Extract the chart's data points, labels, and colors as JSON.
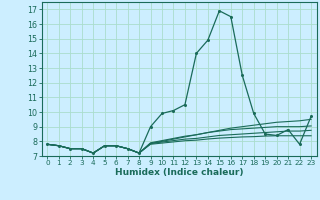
{
  "title": "",
  "xlabel": "Humidex (Indice chaleur)",
  "bg_color": "#cceeff",
  "grid_color": "#aaddcc",
  "line_color": "#1a6b5a",
  "xlim": [
    -0.5,
    23.5
  ],
  "ylim": [
    7.0,
    17.5
  ],
  "yticks": [
    7,
    8,
    9,
    10,
    11,
    12,
    13,
    14,
    15,
    16,
    17
  ],
  "xticks": [
    0,
    1,
    2,
    3,
    4,
    5,
    6,
    7,
    8,
    9,
    10,
    11,
    12,
    13,
    14,
    15,
    16,
    17,
    18,
    19,
    20,
    21,
    22,
    23
  ],
  "series": [
    [
      7.8,
      7.7,
      7.5,
      7.5,
      7.2,
      7.7,
      7.7,
      7.5,
      7.2,
      9.0,
      9.9,
      10.1,
      10.5,
      14.0,
      14.9,
      16.9,
      16.5,
      12.5,
      9.9,
      8.5,
      8.4,
      8.8,
      7.8,
      9.7
    ],
    [
      7.8,
      7.7,
      7.5,
      7.5,
      7.2,
      7.7,
      7.7,
      7.5,
      7.2,
      7.85,
      8.0,
      8.15,
      8.3,
      8.45,
      8.6,
      8.75,
      8.9,
      9.0,
      9.1,
      9.2,
      9.3,
      9.35,
      9.4,
      9.5
    ],
    [
      7.8,
      7.7,
      7.5,
      7.5,
      7.2,
      7.7,
      7.7,
      7.5,
      7.2,
      7.9,
      8.05,
      8.2,
      8.35,
      8.45,
      8.6,
      8.7,
      8.8,
      8.85,
      8.9,
      8.95,
      9.0,
      9.0,
      9.0,
      9.05
    ],
    [
      7.8,
      7.7,
      7.5,
      7.5,
      7.2,
      7.7,
      7.7,
      7.5,
      7.2,
      7.85,
      7.95,
      8.05,
      8.15,
      8.2,
      8.3,
      8.4,
      8.45,
      8.5,
      8.55,
      8.6,
      8.65,
      8.7,
      8.7,
      8.75
    ],
    [
      7.8,
      7.7,
      7.5,
      7.5,
      7.2,
      7.7,
      7.7,
      7.5,
      7.2,
      7.8,
      7.88,
      7.96,
      8.04,
      8.08,
      8.16,
      8.22,
      8.26,
      8.3,
      8.32,
      8.36,
      8.38,
      8.38,
      8.38,
      8.38
    ]
  ]
}
